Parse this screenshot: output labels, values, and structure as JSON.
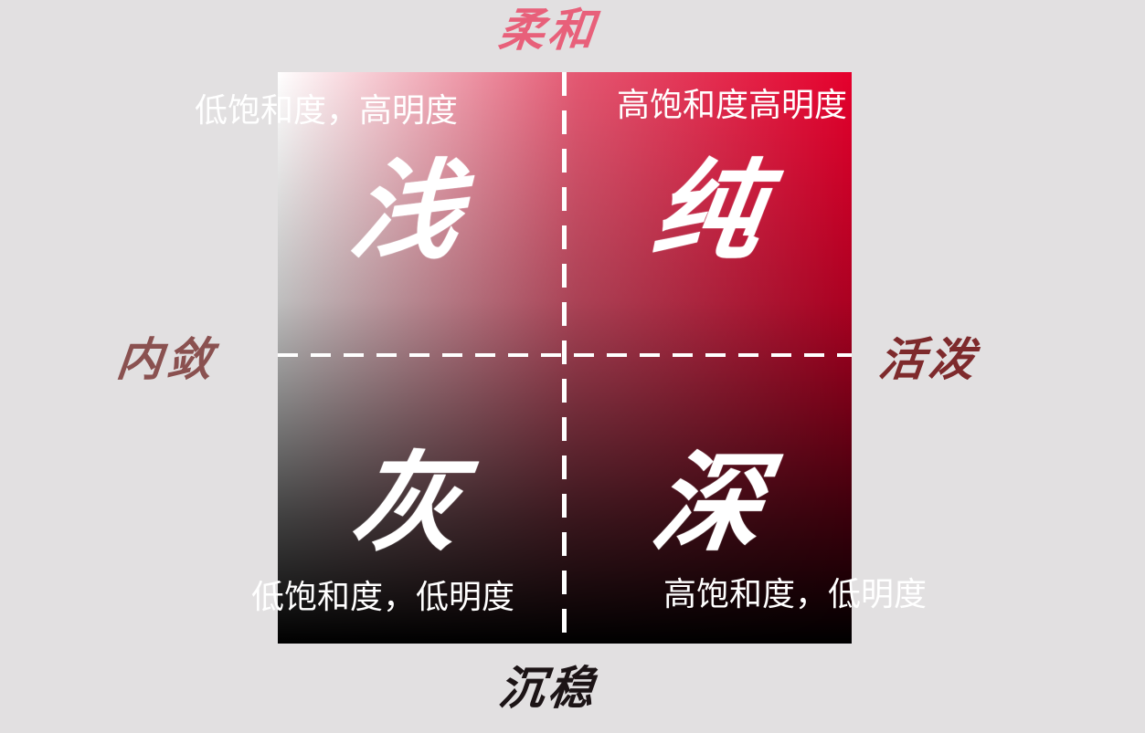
{
  "axes": {
    "top": "柔和",
    "bottom": "沉稳",
    "left": "内敛",
    "right": "活泼"
  },
  "quadrants": {
    "top_left": {
      "char": "浅",
      "desc": "低饱和度，高明度"
    },
    "top_right": {
      "char": "纯",
      "desc": "高饱和度高明度"
    },
    "bottom_left": {
      "char": "灰",
      "desc": "低饱和度，低明度"
    },
    "bottom_right": {
      "char": "深",
      "desc": "高饱和度，低明度"
    }
  },
  "colors": {
    "background": "#e2e0e1",
    "gradient_light": "#ffffff",
    "gradient_pure": "#e5002c",
    "gradient_dark": "#000000",
    "label_top": "#e8607a",
    "label_bottom": "#1c1416",
    "label_left": "#8a5150",
    "label_right": "#7e2a2c"
  }
}
